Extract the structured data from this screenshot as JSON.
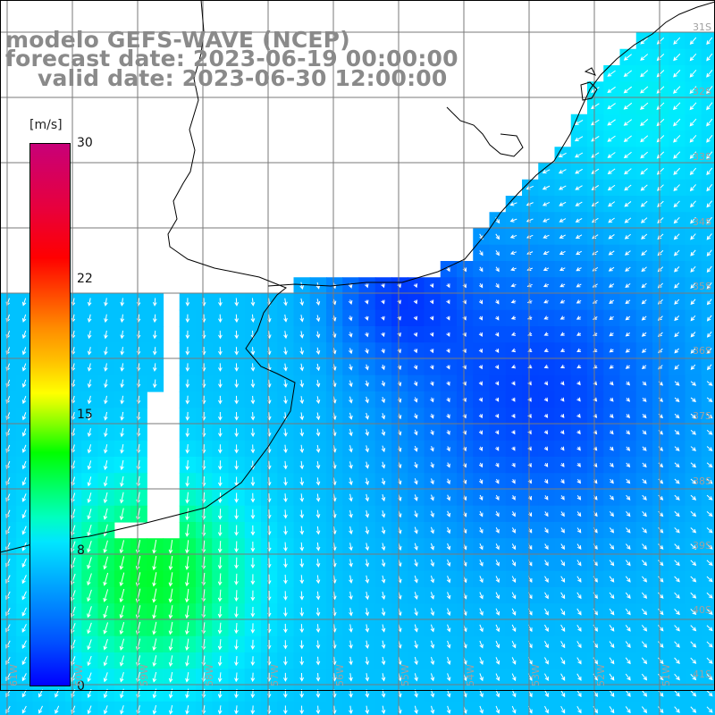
{
  "titles": {
    "line1": "modelo GEFS-WAVE (NCEP)",
    "line2": "forecast date: 2023-06-19 00:00:00",
    "line3": "valid date: 2023-06-30 12:00:00"
  },
  "legend": {
    "unit": "[m/s]",
    "ticks": [
      "30",
      "22",
      "15",
      "8",
      "0"
    ],
    "range": [
      0,
      30
    ]
  },
  "map": {
    "variable": "wind speed and direction",
    "land_color": "#ffffff",
    "coastline_color": "#000000",
    "grid_color": "#808080",
    "lat_labels": [
      "31S",
      "32S",
      "33S",
      "34S",
      "35S",
      "36S",
      "37S",
      "38S",
      "39S",
      "40S",
      "41S"
    ],
    "lon_labels": [
      "61W",
      "60W",
      "59W",
      "58W",
      "57W",
      "56W",
      "55W",
      "54W",
      "53W",
      "52W",
      "51W"
    ],
    "regions": {
      "southwest_peak": "light green, about 12 m/s, arrows pointing south-southwest",
      "central_ocean": "deep blue, about 2-4 m/s, weak arrows",
      "southeast": "light blue, about 6-7 m/s, arrows pointing east-southeast"
    }
  }
}
